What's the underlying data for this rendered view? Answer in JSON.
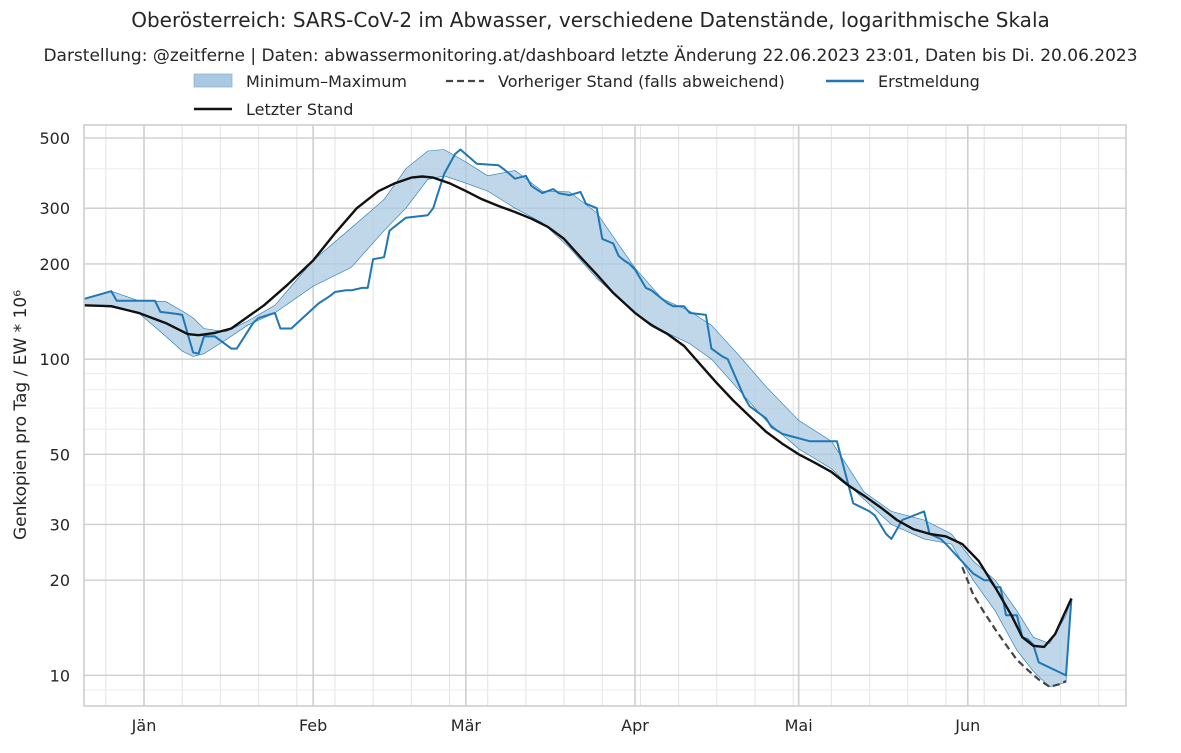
{
  "chart_data": {
    "type": "line",
    "title": "Oberösterreich: SARS-CoV-2 im Abwasser, verschiedene Datenstände, logarithmische Skala",
    "subtitle": "Darstellung: @zeitferne | Daten: abwassermonitoring.at/dashboard letzte Änderung 22.06.2023 23:01, Daten bis Di. 20.06.2023",
    "xlabel": "",
    "ylabel": "Genkopien pro Tag / EW * 10⁶",
    "yscale": "log",
    "ylim": [
      8.0,
      550
    ],
    "yticks": [
      10,
      20,
      30,
      50,
      100,
      200,
      300,
      500
    ],
    "xlim": [
      "2022-12-21",
      "2023-06-30"
    ],
    "month_ticks": [
      {
        "date": "2023-01-01",
        "label": "Jän"
      },
      {
        "date": "2023-02-01",
        "label": "Feb"
      },
      {
        "date": "2023-03-01",
        "label": "Mär"
      },
      {
        "date": "2023-04-01",
        "label": "Apr"
      },
      {
        "date": "2023-05-01",
        "label": "Mai"
      },
      {
        "date": "2023-06-01",
        "label": "Jun"
      }
    ],
    "grid": true,
    "legend_position": "top",
    "legend": [
      {
        "label": "Minimum–Maximum",
        "kind": "band",
        "color": "#a9c9e2"
      },
      {
        "label": "Vorheriger Stand (falls abweichend)",
        "kind": "dashed",
        "color": "#444444"
      },
      {
        "label": "Erstmeldung",
        "kind": "line",
        "color": "#1f77b4"
      },
      {
        "label": "Letzter Stand",
        "kind": "line",
        "color": "#111111"
      }
    ],
    "series": [
      {
        "name": "Erstmeldung",
        "x": [
          "2022-12-21",
          "2022-12-26",
          "2022-12-27",
          "2022-12-31",
          "2023-01-03",
          "2023-01-04",
          "2023-01-07",
          "2023-01-08",
          "2023-01-10",
          "2023-01-11",
          "2023-01-12",
          "2023-01-14",
          "2023-01-17",
          "2023-01-18",
          "2023-01-21",
          "2023-01-22",
          "2023-01-25",
          "2023-01-26",
          "2023-01-28",
          "2023-02-02",
          "2023-02-04",
          "2023-02-05",
          "2023-02-07",
          "2023-02-08",
          "2023-02-10",
          "2023-02-11",
          "2023-02-12",
          "2023-02-14",
          "2023-02-15",
          "2023-02-18",
          "2023-02-22",
          "2023-02-23",
          "2023-02-25",
          "2023-02-27",
          "2023-02-28",
          "2023-03-03",
          "2023-03-07",
          "2023-03-08",
          "2023-03-10",
          "2023-03-12",
          "2023-03-13",
          "2023-03-15",
          "2023-03-17",
          "2023-03-18",
          "2023-03-20",
          "2023-03-22",
          "2023-03-23",
          "2023-03-25",
          "2023-03-26",
          "2023-03-28",
          "2023-03-29",
          "2023-03-30",
          "2023-03-31",
          "2023-04-01",
          "2023-04-03",
          "2023-04-04",
          "2023-04-07",
          "2023-04-08",
          "2023-04-10",
          "2023-04-11",
          "2023-04-14",
          "2023-04-15",
          "2023-04-17",
          "2023-04-18",
          "2023-04-21",
          "2023-04-22",
          "2023-04-25",
          "2023-04-26",
          "2023-04-28",
          "2023-05-03",
          "2023-05-04",
          "2023-05-07",
          "2023-05-08",
          "2023-05-11",
          "2023-05-14",
          "2023-05-15",
          "2023-05-17",
          "2023-05-18",
          "2023-05-20",
          "2023-05-24",
          "2023-05-25",
          "2023-05-27",
          "2023-05-28",
          "2023-06-02",
          "2023-06-04",
          "2023-06-05",
          "2023-06-06",
          "2023-06-07",
          "2023-06-08",
          "2023-06-10",
          "2023-06-11",
          "2023-06-12",
          "2023-06-13",
          "2023-06-14",
          "2023-06-19",
          "2023-06-20"
        ],
        "y": [
          155,
          164,
          153,
          153,
          153,
          141,
          139,
          138,
          105,
          104,
          118,
          118,
          108,
          108,
          130,
          135,
          140,
          125,
          125,
          150,
          158,
          163,
          165,
          165,
          168,
          168,
          207,
          210,
          255,
          280,
          285,
          300,
          385,
          445,
          460,
          415,
          410,
          398,
          372,
          380,
          353,
          335,
          345,
          335,
          330,
          338,
          310,
          300,
          240,
          232,
          212,
          205,
          200,
          192,
          168,
          165,
          150,
          147,
          147,
          140,
          138,
          108,
          102,
          100,
          76,
          71,
          65,
          61,
          58,
          55,
          55,
          55,
          55,
          35,
          33,
          32,
          28,
          27,
          31,
          33,
          28,
          27,
          26,
          21,
          20,
          20,
          19,
          19,
          15.5,
          15.5,
          13.2,
          13.0,
          12.5,
          11.0,
          10.0,
          17.5
        ]
      },
      {
        "name": "Letzter Stand",
        "x": [
          "2022-12-21",
          "2022-12-26",
          "2022-12-31",
          "2023-01-05",
          "2023-01-09",
          "2023-01-11",
          "2023-01-14",
          "2023-01-17",
          "2023-01-20",
          "2023-01-23",
          "2023-01-27",
          "2023-02-01",
          "2023-02-05",
          "2023-02-09",
          "2023-02-13",
          "2023-02-16",
          "2023-02-19",
          "2023-02-21",
          "2023-02-23",
          "2023-02-26",
          "2023-03-01",
          "2023-03-04",
          "2023-03-07",
          "2023-03-10",
          "2023-03-13",
          "2023-03-16",
          "2023-03-19",
          "2023-03-22",
          "2023-03-25",
          "2023-03-28",
          "2023-04-01",
          "2023-04-04",
          "2023-04-07",
          "2023-04-10",
          "2023-04-13",
          "2023-04-16",
          "2023-04-19",
          "2023-04-22",
          "2023-04-25",
          "2023-04-28",
          "2023-05-01",
          "2023-05-04",
          "2023-05-07",
          "2023-05-10",
          "2023-05-13",
          "2023-05-16",
          "2023-05-19",
          "2023-05-22",
          "2023-05-25",
          "2023-05-28",
          "2023-05-31",
          "2023-06-03",
          "2023-06-06",
          "2023-06-09",
          "2023-06-11",
          "2023-06-13",
          "2023-06-15",
          "2023-06-17",
          "2023-06-20"
        ],
        "y": [
          148,
          147,
          140,
          130,
          120,
          119,
          121,
          125,
          136,
          148,
          170,
          205,
          250,
          300,
          340,
          360,
          375,
          378,
          375,
          360,
          340,
          320,
          305,
          292,
          278,
          262,
          240,
          210,
          185,
          162,
          140,
          128,
          120,
          110,
          96,
          84,
          74,
          66,
          59,
          54,
          50,
          47,
          44,
          40,
          37,
          34,
          31,
          29,
          28,
          27.5,
          26,
          23,
          19,
          15.5,
          13.2,
          12.4,
          12.3,
          13.5,
          17.5
        ]
      },
      {
        "name": "Vorheriger Stand (falls abweichend)",
        "x": [
          "2023-05-31",
          "2023-06-02",
          "2023-06-04",
          "2023-06-06",
          "2023-06-08",
          "2023-06-10",
          "2023-06-12",
          "2023-06-14",
          "2023-06-16",
          "2023-06-18",
          "2023-06-19"
        ],
        "y": [
          22,
          18,
          15.8,
          14.0,
          12.5,
          11.2,
          10.4,
          9.7,
          9.2,
          9.4,
          9.6
        ]
      },
      {
        "name": "Minimum–Maximum",
        "x": [
          "2022-12-21",
          "2022-12-26",
          "2022-12-31",
          "2023-01-05",
          "2023-01-08",
          "2023-01-10",
          "2023-01-12",
          "2023-01-16",
          "2023-01-20",
          "2023-01-25",
          "2023-02-01",
          "2023-02-08",
          "2023-02-14",
          "2023-02-18",
          "2023-02-22",
          "2023-02-25",
          "2023-03-01",
          "2023-03-05",
          "2023-03-10",
          "2023-03-15",
          "2023-03-20",
          "2023-03-25",
          "2023-04-01",
          "2023-04-06",
          "2023-04-11",
          "2023-04-15",
          "2023-04-20",
          "2023-04-25",
          "2023-05-01",
          "2023-05-07",
          "2023-05-13",
          "2023-05-18",
          "2023-05-24",
          "2023-05-29",
          "2023-06-02",
          "2023-06-06",
          "2023-06-10",
          "2023-06-13",
          "2023-06-16",
          "2023-06-19",
          "2023-06-20"
        ],
        "min": [
          148,
          146,
          140,
          118,
          106,
          102,
          104,
          115,
          128,
          140,
          170,
          195,
          255,
          300,
          370,
          380,
          360,
          340,
          300,
          270,
          225,
          180,
          140,
          123,
          112,
          100,
          80,
          64,
          52,
          45,
          36,
          30,
          27,
          26,
          20,
          16,
          12.0,
          10.3,
          9.2,
          9.5,
          17.0
        ],
        "max": [
          155,
          164,
          153,
          152,
          142,
          135,
          125,
          122,
          132,
          148,
          205,
          260,
          320,
          400,
          455,
          460,
          420,
          380,
          395,
          340,
          338,
          290,
          194,
          155,
          142,
          128,
          103,
          82,
          64,
          55,
          38,
          33,
          31,
          28,
          23,
          20,
          16,
          13.2,
          12.6,
          15.5,
          17.5
        ]
      }
    ]
  }
}
